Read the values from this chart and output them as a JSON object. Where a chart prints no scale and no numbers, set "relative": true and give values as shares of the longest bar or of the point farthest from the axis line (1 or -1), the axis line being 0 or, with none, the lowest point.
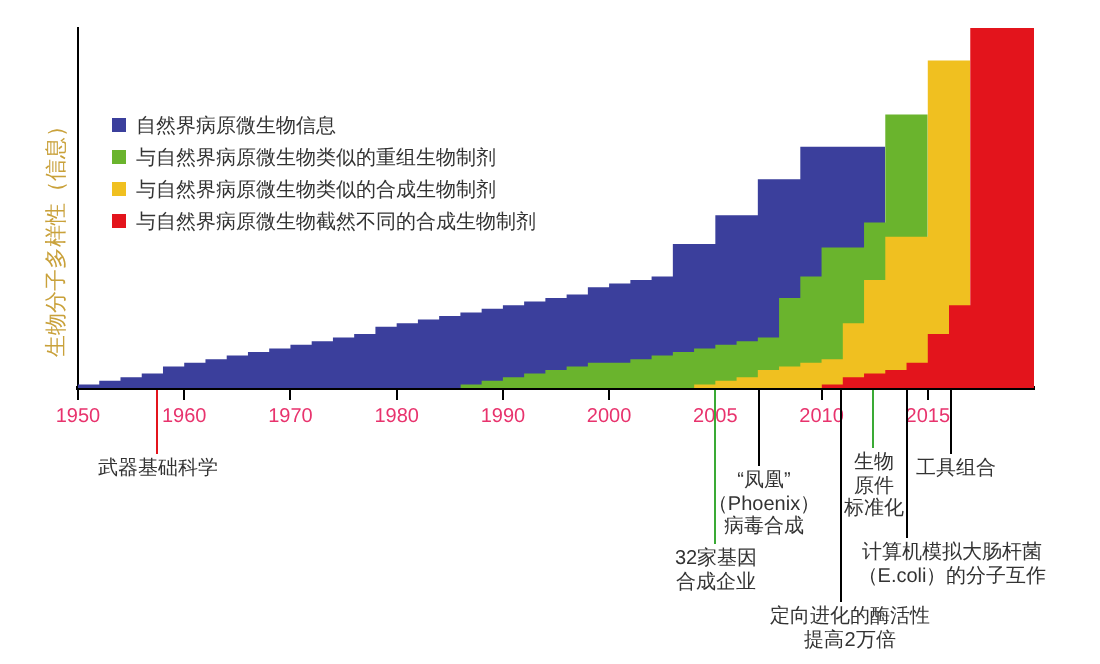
{
  "chart_data": {
    "type": "area",
    "relative": true,
    "stacked": false,
    "marker": "none",
    "grid": false,
    "legend": "top left",
    "ylabel": "生物分子多样性（信息）",
    "categories": [
      "1950",
      null,
      null,
      null,
      null,
      "1960",
      null,
      null,
      null,
      null,
      "1970",
      null,
      null,
      null,
      null,
      "1980",
      null,
      null,
      null,
      null,
      "1990",
      null,
      null,
      null,
      null,
      "2000",
      null,
      null,
      null,
      null,
      "2005",
      null,
      null,
      null,
      null,
      "2010",
      null,
      null,
      null,
      null,
      "2015",
      null,
      null,
      null,
      null,
      null
    ],
    "series": [
      {
        "name": "自然界病原微生物信息",
        "color": "#3b3f9c",
        "values": [
          0,
          0.01,
          0.02,
          0.03,
          0.04,
          0.06,
          0.07,
          0.08,
          0.09,
          0.1,
          0.11,
          0.12,
          0.13,
          0.14,
          0.15,
          0.17,
          0.18,
          0.19,
          0.2,
          0.21,
          0.22,
          0.23,
          0.24,
          0.25,
          0.26,
          0.28,
          0.29,
          0.3,
          0.31,
          0.4,
          0.4,
          0.48,
          0.48,
          0.58,
          0.58,
          0.67,
          0.67,
          0.67,
          0.67,
          null,
          null,
          null,
          null,
          null,
          null,
          null
        ]
      },
      {
        "name": "与自然界病原微生物类似的重组生物制剂",
        "color": "#6ab42d",
        "values": [
          null,
          null,
          null,
          null,
          null,
          null,
          null,
          null,
          null,
          null,
          null,
          null,
          null,
          null,
          null,
          null,
          null,
          null,
          0,
          0.01,
          0.02,
          0.03,
          0.04,
          0.05,
          0.06,
          0.07,
          0.07,
          0.08,
          0.09,
          0.1,
          0.11,
          0.12,
          0.13,
          0.14,
          0.25,
          0.31,
          0.39,
          0.39,
          0.46,
          0.76,
          0.76,
          null,
          null,
          null,
          null,
          null
        ]
      },
      {
        "name": "与自然界病原微生物类似的合成生物制剂",
        "color": "#f0c020",
        "values": [
          null,
          null,
          null,
          null,
          null,
          null,
          null,
          null,
          null,
          null,
          null,
          null,
          null,
          null,
          null,
          null,
          null,
          null,
          null,
          null,
          null,
          null,
          null,
          null,
          null,
          null,
          null,
          null,
          null,
          0,
          0.01,
          0.02,
          0.03,
          0.05,
          0.06,
          0.07,
          0.08,
          0.18,
          0.3,
          0.42,
          0.42,
          0.91,
          0.91,
          null,
          null,
          null
        ]
      },
      {
        "name": "与自然界病原微生物截然不同的合成生物制剂",
        "color": "#e3141c",
        "values": [
          null,
          null,
          null,
          null,
          null,
          null,
          null,
          null,
          null,
          null,
          null,
          null,
          null,
          null,
          null,
          null,
          null,
          null,
          null,
          null,
          null,
          null,
          null,
          null,
          null,
          null,
          null,
          null,
          null,
          null,
          null,
          null,
          null,
          null,
          null,
          0,
          0.01,
          0.03,
          0.04,
          0.05,
          0.07,
          0.15,
          0.23,
          1,
          1,
          1
        ]
      }
    ],
    "annotations": [
      "武器基础科学",
      "32家基因合成企业",
      "“凤凰”（Phoenix）病毒合成",
      "定向进化的酶活性提高2万倍",
      "生物原件标准化",
      "计算机模拟大肠杆菌（E.coli）的分子互作",
      "工具组合"
    ]
  }
}
